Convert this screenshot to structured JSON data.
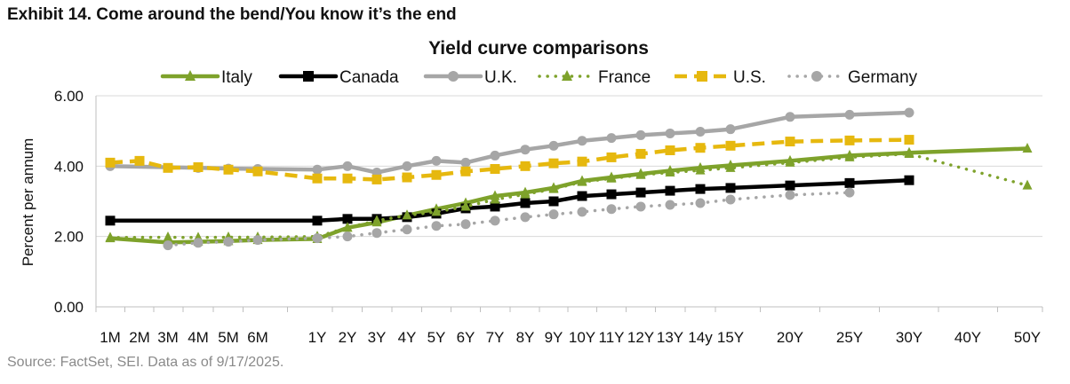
{
  "exhibit_title": "Exhibit 14. Come around the bend/You know it’s the end",
  "source": "Source: FactSet, SEI. Data as of 9/17/2025.",
  "chart_data": {
    "type": "line",
    "title": "Yield curve comparisons",
    "xlabel": "",
    "ylabel": "Percent per annum",
    "ylim": [
      0,
      6
    ],
    "yticks": [
      "0.00",
      "2.00",
      "4.00",
      "6.00"
    ],
    "grid": true,
    "legend_position": "top",
    "categories": [
      "1M",
      "2M",
      "3M",
      "4M",
      "5M",
      "6M",
      "1Y",
      "2Y",
      "3Y",
      "4Y",
      "5Y",
      "6Y",
      "7Y",
      "8Y",
      "9Y",
      "10Y",
      "11Y",
      "12Y",
      "13Y",
      "14y",
      "15Y",
      "20Y",
      "25Y",
      "30Y",
      "40Y",
      "50Y"
    ],
    "series": [
      {
        "name": "Italy",
        "color": "#7ea22b",
        "style": "solid",
        "marker": "triangle",
        "values": [
          1.95,
          null,
          1.83,
          1.85,
          1.87,
          1.9,
          1.93,
          2.25,
          2.4,
          2.6,
          2.78,
          2.95,
          3.15,
          3.25,
          3.38,
          3.58,
          3.68,
          3.78,
          3.87,
          3.95,
          4.02,
          4.15,
          4.3,
          4.38,
          null,
          4.5
        ]
      },
      {
        "name": "Canada",
        "color": "#000000",
        "style": "solid",
        "marker": "square",
        "values": [
          2.45,
          null,
          null,
          null,
          null,
          null,
          2.45,
          2.5,
          2.5,
          2.55,
          2.65,
          2.8,
          2.85,
          2.95,
          3.0,
          3.15,
          3.2,
          3.25,
          3.3,
          3.35,
          3.38,
          3.45,
          3.52,
          3.6,
          null,
          null
        ]
      },
      {
        "name": "U.K.",
        "color": "#a6a6a6",
        "style": "solid",
        "marker": "circle",
        "values": [
          4.0,
          null,
          null,
          3.95,
          3.93,
          3.92,
          3.9,
          4.0,
          3.82,
          4.0,
          4.15,
          4.1,
          4.3,
          4.47,
          4.58,
          4.72,
          4.8,
          4.88,
          4.93,
          4.98,
          5.05,
          5.4,
          5.46,
          5.52,
          null,
          null
        ]
      },
      {
        "name": "France",
        "color": "#7ea22b",
        "style": "dotted",
        "marker": "triangle",
        "values": [
          1.97,
          null,
          1.98,
          1.97,
          1.98,
          1.98,
          2.0,
          2.25,
          2.45,
          2.6,
          2.7,
          2.85,
          3.05,
          3.2,
          3.35,
          3.55,
          3.65,
          3.75,
          3.82,
          3.88,
          3.95,
          4.1,
          4.25,
          4.35,
          null,
          3.45
        ]
      },
      {
        "name": "U.S.",
        "color": "#e6b80e",
        "style": "dashed",
        "marker": "square",
        "values": [
          4.1,
          4.15,
          3.95,
          3.97,
          3.9,
          3.85,
          3.65,
          3.65,
          3.62,
          3.68,
          3.75,
          3.85,
          3.92,
          4.0,
          4.08,
          4.13,
          4.25,
          4.35,
          4.45,
          4.52,
          4.58,
          4.7,
          4.73,
          4.75,
          null,
          null
        ]
      },
      {
        "name": "Germany",
        "color": "#a6a6a6",
        "style": "dotted",
        "marker": "circle",
        "values": [
          null,
          null,
          1.75,
          1.82,
          1.85,
          1.9,
          1.95,
          2.0,
          2.1,
          2.2,
          2.3,
          2.35,
          2.45,
          2.55,
          2.63,
          2.7,
          2.78,
          2.85,
          2.9,
          2.95,
          3.05,
          3.18,
          3.25,
          null,
          null,
          null
        ]
      }
    ]
  }
}
